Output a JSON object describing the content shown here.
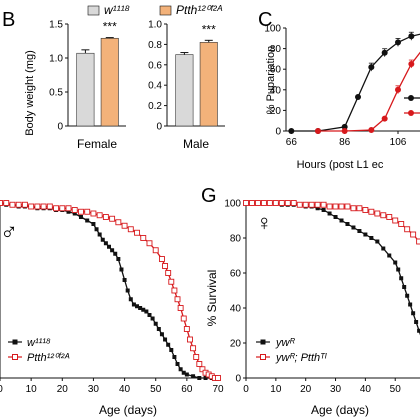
{
  "colors": {
    "wt_fill": "#d9d9d9",
    "mutant_fill": "#f3b27a",
    "black": "#111111",
    "red": "#d7191c"
  },
  "legend_top": {
    "wt_label": "w¹¹¹⁸",
    "mutant_label": "Ptth¹²⁰ᶠ²ᴬ"
  },
  "chart_data": [
    {
      "panel": "B",
      "type": "bar",
      "title": "",
      "ylabel": "Body weight (mg)",
      "ylim": [
        0,
        1.5
      ],
      "groups": [
        {
          "name": "Female",
          "yticks": [
            "0",
            "0.5",
            "1.0",
            "1.5"
          ],
          "ylim": [
            0,
            1.5
          ],
          "values": [
            1.07,
            1.29
          ],
          "errors": [
            0.05,
            0.01
          ],
          "significance": "***"
        },
        {
          "name": "Male",
          "yticks": [
            "0",
            "0.2",
            "0.4",
            "0.6",
            "0.8",
            "1.0"
          ],
          "ylim": [
            0,
            1.0
          ],
          "values": [
            0.7,
            0.82
          ],
          "errors": [
            0.02,
            0.02
          ],
          "significance": "***"
        }
      ],
      "series": [
        {
          "name": "w¹¹¹⁸",
          "color_key": "wt_fill"
        },
        {
          "name": "Ptth¹²⁰ᶠ²ᴬ",
          "color_key": "mutant_fill"
        }
      ]
    },
    {
      "panel": "C",
      "type": "line",
      "xlabel": "Hours (post L1 ec",
      "ylabel": "% Pupariation",
      "xlim": [
        64,
        124
      ],
      "ylim": [
        0,
        100
      ],
      "xticks": [
        "66",
        "86",
        "106"
      ],
      "yticks": [
        "0",
        "20",
        "40",
        "60",
        "80",
        "100"
      ],
      "series": [
        {
          "name": "",
          "color_key": "black",
          "points": [
            [
              66,
              0
            ],
            [
              76,
              0
            ],
            [
              86,
              4
            ],
            [
              91,
              33
            ],
            [
              96,
              62
            ],
            [
              101,
              76
            ],
            [
              106,
              86
            ],
            [
              111,
              92
            ],
            [
              116,
              95
            ],
            [
              121,
              100
            ]
          ]
        },
        {
          "name": "",
          "color_key": "red",
          "points": [
            [
              76,
              0
            ],
            [
              86,
              0
            ],
            [
              96,
              1
            ],
            [
              101,
              12
            ],
            [
              106,
              40
            ],
            [
              111,
              65
            ],
            [
              116,
              82
            ],
            [
              121,
              90
            ]
          ]
        }
      ]
    },
    {
      "panel": "",
      "type": "line",
      "sex_symbol": "♂",
      "xlabel": "Age (days)",
      "ylabel": "",
      "xlim": [
        0,
        70
      ],
      "ylim": [
        0,
        100
      ],
      "xticks": [
        "0",
        "10",
        "20",
        "30",
        "40",
        "50",
        "60",
        "70"
      ],
      "yticks": [],
      "series": [
        {
          "name": "w¹¹¹⁸",
          "color_key": "black",
          "marker": "filled-square",
          "points": [
            [
              0,
              100
            ],
            [
              2,
              99
            ],
            [
              4,
              99
            ],
            [
              6,
              98
            ],
            [
              8,
              98
            ],
            [
              10,
              98
            ],
            [
              12,
              97
            ],
            [
              14,
              97
            ],
            [
              16,
              97
            ],
            [
              18,
              96
            ],
            [
              20,
              96
            ],
            [
              22,
              95
            ],
            [
              24,
              94
            ],
            [
              26,
              92
            ],
            [
              28,
              90
            ],
            [
              30,
              88
            ],
            [
              31,
              85
            ],
            [
              32,
              82
            ],
            [
              33,
              79
            ],
            [
              34,
              77
            ],
            [
              35,
              75
            ],
            [
              36,
              73
            ],
            [
              37,
              71
            ],
            [
              38,
              68
            ],
            [
              39,
              62
            ],
            [
              40,
              56
            ],
            [
              41,
              50
            ],
            [
              42,
              45
            ],
            [
              43,
              42
            ],
            [
              44,
              41
            ],
            [
              45,
              40
            ],
            [
              46,
              39
            ],
            [
              47,
              38
            ],
            [
              48,
              36
            ],
            [
              49,
              34
            ],
            [
              50,
              31
            ],
            [
              51,
              28
            ],
            [
              52,
              25
            ],
            [
              53,
              22
            ],
            [
              54,
              19
            ],
            [
              55,
              16
            ],
            [
              56,
              12
            ],
            [
              57,
              8
            ],
            [
              58,
              5
            ],
            [
              59,
              3
            ],
            [
              60,
              2
            ],
            [
              62,
              1
            ],
            [
              64,
              0
            ],
            [
              66,
              0
            ],
            [
              68,
              0
            ],
            [
              70,
              0
            ]
          ]
        },
        {
          "name": "Ptth¹²⁰ᶠ²ᴬ",
          "color_key": "red",
          "marker": "open-square",
          "points": [
            [
              0,
              100
            ],
            [
              2,
              100
            ],
            [
              4,
              99
            ],
            [
              6,
              99
            ],
            [
              8,
              99
            ],
            [
              10,
              98
            ],
            [
              12,
              98
            ],
            [
              14,
              98
            ],
            [
              16,
              98
            ],
            [
              18,
              97
            ],
            [
              20,
              97
            ],
            [
              22,
              97
            ],
            [
              24,
              96
            ],
            [
              26,
              95
            ],
            [
              28,
              95
            ],
            [
              30,
              94
            ],
            [
              32,
              93
            ],
            [
              34,
              92
            ],
            [
              36,
              91
            ],
            [
              38,
              89
            ],
            [
              40,
              87
            ],
            [
              42,
              85
            ],
            [
              44,
              83
            ],
            [
              46,
              80
            ],
            [
              48,
              77
            ],
            [
              50,
              73
            ],
            [
              52,
              68
            ],
            [
              53,
              64
            ],
            [
              54,
              60
            ],
            [
              55,
              55
            ],
            [
              56,
              50
            ],
            [
              57,
              45
            ],
            [
              58,
              40
            ],
            [
              59,
              34
            ],
            [
              60,
              28
            ],
            [
              61,
              22
            ],
            [
              62,
              17
            ],
            [
              63,
              12
            ],
            [
              64,
              8
            ],
            [
              65,
              5
            ],
            [
              66,
              3
            ],
            [
              67,
              2
            ],
            [
              68,
              1
            ],
            [
              69,
              0
            ],
            [
              70,
              0
            ]
          ]
        }
      ]
    },
    {
      "panel": "G",
      "type": "line",
      "sex_symbol": "♀",
      "xlabel": "Age (days)",
      "ylabel": "% Survival",
      "xlim": [
        0,
        65
      ],
      "ylim": [
        0,
        100
      ],
      "xticks": [
        "0",
        "10",
        "20",
        "30",
        "40",
        "50",
        "60"
      ],
      "yticks": [
        "0",
        "20",
        "40",
        "60",
        "80",
        "100"
      ],
      "series": [
        {
          "name": "ywᴿ",
          "color_key": "black",
          "marker": "filled-square",
          "points": [
            [
              0,
              100
            ],
            [
              2,
              100
            ],
            [
              4,
              100
            ],
            [
              6,
              100
            ],
            [
              8,
              100
            ],
            [
              10,
              100
            ],
            [
              12,
              99
            ],
            [
              14,
              99
            ],
            [
              16,
              99
            ],
            [
              18,
              99
            ],
            [
              20,
              98
            ],
            [
              22,
              98
            ],
            [
              24,
              97
            ],
            [
              26,
              96
            ],
            [
              28,
              94
            ],
            [
              30,
              92
            ],
            [
              32,
              90
            ],
            [
              34,
              88
            ],
            [
              36,
              86
            ],
            [
              38,
              84
            ],
            [
              40,
              82
            ],
            [
              42,
              80
            ],
            [
              44,
              78
            ],
            [
              46,
              74
            ],
            [
              48,
              70
            ],
            [
              50,
              66
            ],
            [
              51,
              62
            ],
            [
              52,
              57
            ],
            [
              53,
              52
            ],
            [
              54,
              47
            ],
            [
              55,
              42
            ],
            [
              56,
              37
            ],
            [
              57,
              32
            ],
            [
              58,
              27
            ],
            [
              59,
              22
            ],
            [
              60,
              17
            ],
            [
              61,
              13
            ],
            [
              62,
              10
            ],
            [
              63,
              8
            ],
            [
              64,
              6
            ],
            [
              65,
              5
            ]
          ]
        },
        {
          "name": "ywᴿ; Ptthᵀᴵ",
          "color_key": "red",
          "marker": "open-square",
          "points": [
            [
              0,
              100
            ],
            [
              2,
              100
            ],
            [
              4,
              100
            ],
            [
              6,
              100
            ],
            [
              8,
              100
            ],
            [
              10,
              100
            ],
            [
              12,
              100
            ],
            [
              14,
              100
            ],
            [
              16,
              100
            ],
            [
              18,
              99
            ],
            [
              20,
              99
            ],
            [
              22,
              99
            ],
            [
              24,
              99
            ],
            [
              26,
              99
            ],
            [
              28,
              98
            ],
            [
              30,
              98
            ],
            [
              32,
              98
            ],
            [
              34,
              98
            ],
            [
              36,
              97
            ],
            [
              38,
              97
            ],
            [
              40,
              96
            ],
            [
              42,
              95
            ],
            [
              44,
              94
            ],
            [
              46,
              93
            ],
            [
              48,
              92
            ],
            [
              50,
              90
            ],
            [
              52,
              88
            ],
            [
              54,
              85
            ],
            [
              56,
              82
            ],
            [
              58,
              78
            ],
            [
              60,
              74
            ],
            [
              62,
              70
            ],
            [
              64,
              66
            ],
            [
              65,
              64
            ]
          ]
        }
      ]
    }
  ]
}
